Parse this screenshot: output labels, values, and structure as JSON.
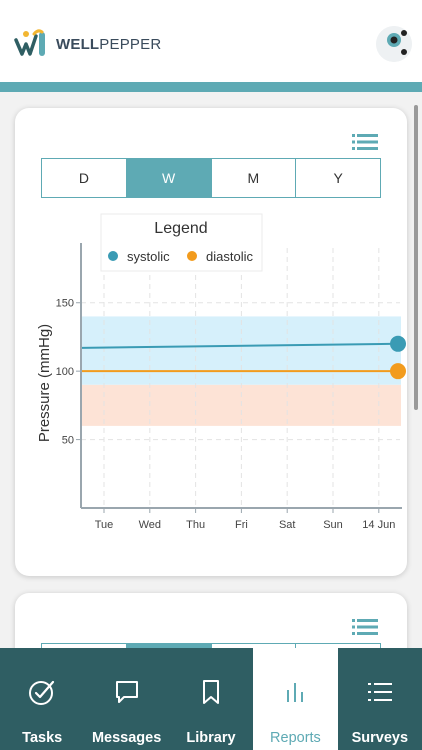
{
  "header": {
    "brand_bold": "WELL",
    "brand_light": "PEPPER"
  },
  "colors": {
    "teal": "#5eaab4",
    "nav_bg": "#2f5e63",
    "systolic": "#3a9bb4",
    "diastolic": "#f29b1d",
    "systolic_band": "#d6f0fb",
    "diastolic_band": "#fde3d6"
  },
  "range_tabs": {
    "options": [
      "D",
      "W",
      "M",
      "Y"
    ],
    "selected": "W"
  },
  "chart_data": {
    "type": "line",
    "ylabel": "Pressure (mmHg)",
    "xlabel": "",
    "categories": [
      "Tue",
      "Wed",
      "Thu",
      "Fri",
      "Sat",
      "Sun",
      "14 Jun"
    ],
    "yticks": [
      50,
      100,
      150
    ],
    "ylim": [
      0,
      190
    ],
    "legend_title": "Legend",
    "legend_position": "top",
    "grid": true,
    "series": [
      {
        "name": "systolic",
        "start": 117,
        "end": 120,
        "color": "#3a9bb4"
      },
      {
        "name": "diastolic",
        "start": 100,
        "end": 100,
        "color": "#f29b1d"
      }
    ],
    "bands": [
      {
        "series": "systolic",
        "from": 90,
        "to": 140,
        "color": "#d6f0fb"
      },
      {
        "series": "diastolic",
        "from": 60,
        "to": 90,
        "color": "#fde3d6"
      }
    ]
  },
  "nav": {
    "items": [
      {
        "label": "Tasks",
        "icon": "check-circle-icon"
      },
      {
        "label": "Messages",
        "icon": "chat-bubble-icon"
      },
      {
        "label": "Library",
        "icon": "bookmark-icon"
      },
      {
        "label": "Reports",
        "icon": "bar-chart-icon"
      },
      {
        "label": "Surveys",
        "icon": "list-icon"
      }
    ],
    "active": "Reports"
  }
}
